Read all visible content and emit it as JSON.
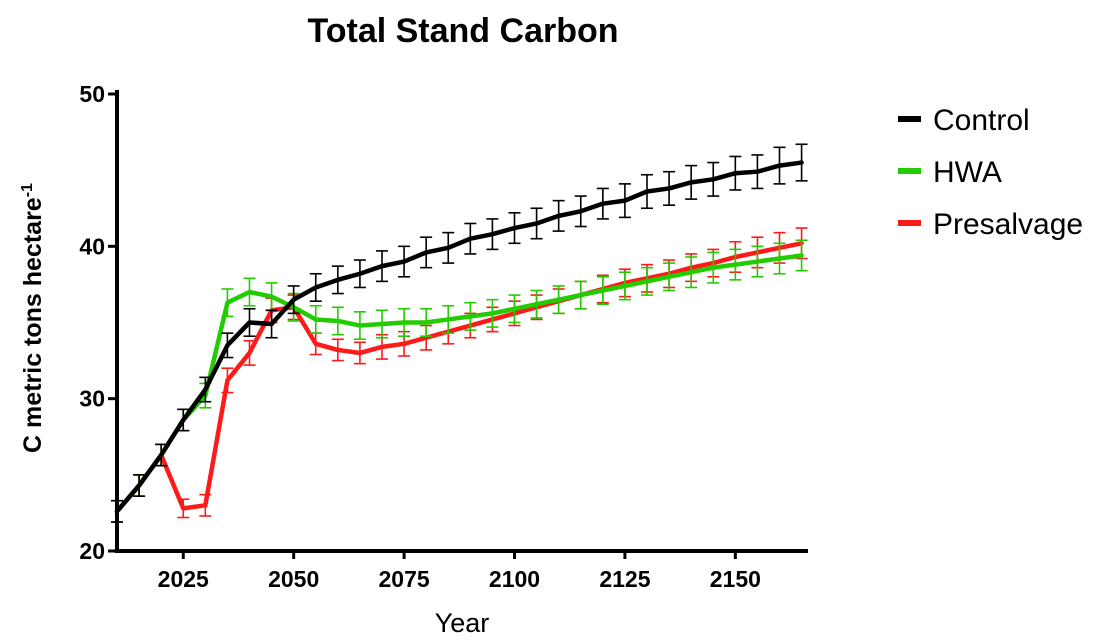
{
  "chart_data": {
    "type": "line",
    "title": "Total Stand Carbon",
    "xlabel": "Year",
    "ylabel": "C metric tons hectare",
    "ylabel_superscript": "-1",
    "xlim": [
      2010,
      2166
    ],
    "ylim": [
      20,
      50
    ],
    "xticks": [
      2025,
      2050,
      2075,
      2100,
      2125,
      2150
    ],
    "yticks": [
      20,
      30,
      40,
      50
    ],
    "x": [
      2010,
      2015,
      2020,
      2025,
      2030,
      2035,
      2040,
      2045,
      2050,
      2055,
      2060,
      2065,
      2070,
      2075,
      2080,
      2085,
      2090,
      2095,
      2100,
      2105,
      2110,
      2115,
      2120,
      2125,
      2130,
      2135,
      2140,
      2145,
      2150,
      2155,
      2160,
      2165
    ],
    "legend_position": "right",
    "series": [
      {
        "name": "Control",
        "color": "#000000",
        "values": [
          22.6,
          24.3,
          26.3,
          28.6,
          30.6,
          33.5,
          35.0,
          34.9,
          36.5,
          37.3,
          37.8,
          38.2,
          38.7,
          39.0,
          39.6,
          39.9,
          40.5,
          40.8,
          41.2,
          41.5,
          42.0,
          42.3,
          42.8,
          43.0,
          43.6,
          43.8,
          44.2,
          44.4,
          44.8,
          44.9,
          45.3,
          45.5
        ],
        "error": [
          0.7,
          0.7,
          0.7,
          0.7,
          0.8,
          0.8,
          0.9,
          0.9,
          0.9,
          0.9,
          0.9,
          0.9,
          1.0,
          1.0,
          1.0,
          1.0,
          1.0,
          1.0,
          1.0,
          1.0,
          1.0,
          1.0,
          1.0,
          1.1,
          1.1,
          1.1,
          1.1,
          1.1,
          1.1,
          1.1,
          1.2,
          1.2
        ]
      },
      {
        "name": "HWA",
        "color": "#22cc00",
        "values": [
          22.6,
          24.3,
          26.3,
          28.6,
          30.2,
          36.3,
          37.0,
          36.7,
          36.0,
          35.2,
          35.1,
          34.8,
          34.9,
          35.0,
          35.0,
          35.2,
          35.4,
          35.6,
          35.9,
          36.2,
          36.5,
          36.8,
          37.1,
          37.4,
          37.7,
          38.0,
          38.3,
          38.6,
          38.8,
          39.0,
          39.2,
          39.4
        ],
        "error": [
          0.7,
          0.7,
          0.7,
          0.7,
          0.8,
          0.9,
          0.9,
          0.9,
          0.9,
          0.9,
          0.9,
          0.9,
          0.9,
          0.9,
          0.9,
          0.9,
          0.9,
          0.9,
          0.9,
          0.9,
          0.9,
          0.9,
          0.9,
          0.9,
          0.9,
          0.9,
          1.0,
          1.0,
          1.0,
          1.0,
          1.0,
          1.0
        ]
      },
      {
        "name": "Presalvage",
        "color": "#ff1a1a",
        "values": [
          22.6,
          24.3,
          26.3,
          22.8,
          23.0,
          31.2,
          33.0,
          35.8,
          36.0,
          33.6,
          33.2,
          33.0,
          33.4,
          33.6,
          34.0,
          34.4,
          34.8,
          35.2,
          35.6,
          36.0,
          36.4,
          36.8,
          37.2,
          37.6,
          37.9,
          38.2,
          38.6,
          38.9,
          39.3,
          39.6,
          39.9,
          40.2
        ],
        "error": [
          0.7,
          0.7,
          0.7,
          0.6,
          0.7,
          0.8,
          0.8,
          0.8,
          0.8,
          0.7,
          0.7,
          0.7,
          0.8,
          0.8,
          0.8,
          0.8,
          0.8,
          0.8,
          0.8,
          0.8,
          0.8,
          0.9,
          0.9,
          0.9,
          0.9,
          0.9,
          0.9,
          0.9,
          1.0,
          1.0,
          1.0,
          1.0
        ]
      }
    ]
  }
}
